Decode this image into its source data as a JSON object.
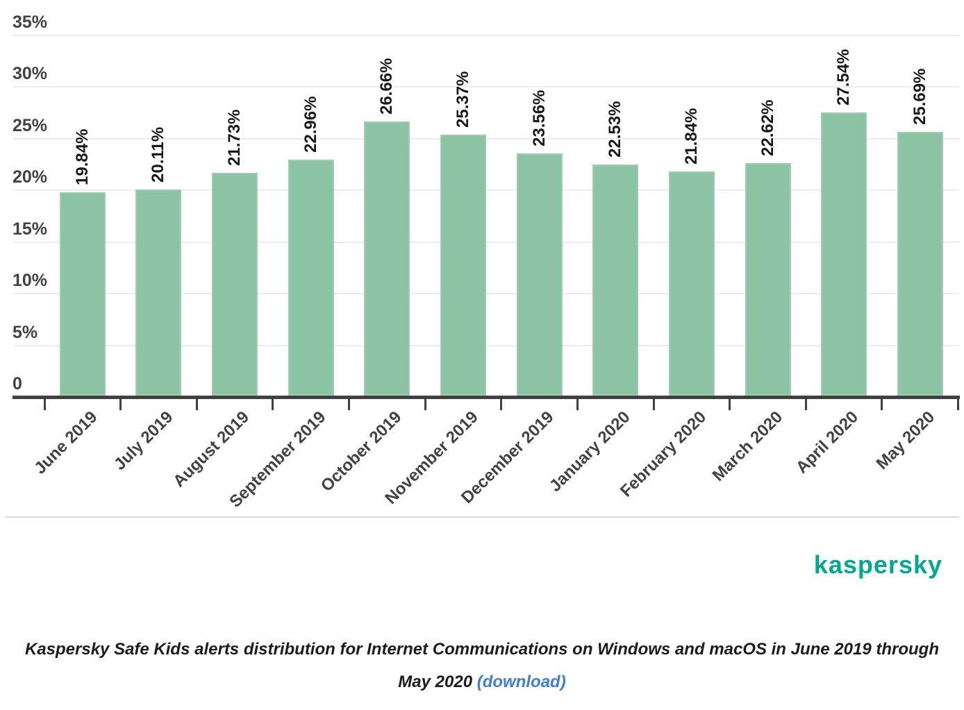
{
  "logo": {
    "text": "kaspersky",
    "color": "#00a88e"
  },
  "caption": {
    "line1": "Kaspersky Safe Kids alerts distribution for Internet Communications on Windows and macOS in June 2019 through",
    "line2": "May 2020",
    "link_label": "(download)",
    "link_color": "#3e7dd8"
  },
  "chart_data": {
    "type": "bar",
    "title": "",
    "xlabel": "",
    "ylabel": "",
    "categories": [
      "June 2019",
      "July 2019",
      "August 2019",
      "September 2019",
      "October 2019",
      "November 2019",
      "December 2019",
      "January 2020",
      "February 2020",
      "March 2020",
      "April 2020",
      "May 2020"
    ],
    "values": [
      19.84,
      20.11,
      21.73,
      22.96,
      26.66,
      25.37,
      23.56,
      22.53,
      21.84,
      22.62,
      27.54,
      25.69
    ],
    "data_labels": [
      "19.84%",
      "20.11%",
      "21.73%",
      "22.96%",
      "26.66%",
      "25.37%",
      "23.56%",
      "22.53%",
      "21.84%",
      "22.62%",
      "27.54%",
      "25.69%"
    ],
    "y_ticks": [
      {
        "label": "35%",
        "value": 35
      },
      {
        "label": "30%",
        "value": 30
      },
      {
        "label": "25%",
        "value": 25
      },
      {
        "label": "20%",
        "value": 20
      },
      {
        "label": "15%",
        "value": 15
      },
      {
        "label": "10%",
        "value": 10
      },
      {
        "label": "5%",
        "value": 5
      },
      {
        "label": "0",
        "value": 0
      }
    ],
    "ylim": [
      0,
      35
    ],
    "grid": true,
    "legend": false,
    "bar_color": "#8cc3a5",
    "bar_border_color": "#9ecdb1",
    "grid_color": "#ececec",
    "axis_color": "#404040",
    "tick_label_color": "#424242",
    "data_label_color": "#1a1a1a"
  }
}
